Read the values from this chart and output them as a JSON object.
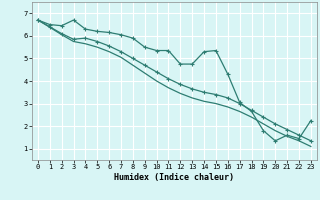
{
  "xlabel": "Humidex (Indice chaleur)",
  "bg_color": "#d8f5f5",
  "grid_color": "#ffffff",
  "line_color": "#2e7d72",
  "xlim": [
    -0.5,
    23.5
  ],
  "ylim": [
    0.5,
    7.5
  ],
  "xticks": [
    0,
    1,
    2,
    3,
    4,
    5,
    6,
    7,
    8,
    9,
    10,
    11,
    12,
    13,
    14,
    15,
    16,
    17,
    18,
    19,
    20,
    21,
    22,
    23
  ],
  "yticks": [
    1,
    2,
    3,
    4,
    5,
    6,
    7
  ],
  "line1_x": [
    0,
    1,
    2,
    3,
    4,
    5,
    6,
    7,
    8,
    9,
    10,
    11,
    12,
    13,
    14,
    15,
    16,
    17,
    18,
    19,
    20,
    21,
    22,
    23
  ],
  "line1_y": [
    6.7,
    6.5,
    6.45,
    6.7,
    6.3,
    6.2,
    6.15,
    6.05,
    5.9,
    5.5,
    5.35,
    5.35,
    4.75,
    4.75,
    5.3,
    5.35,
    4.3,
    3.05,
    2.65,
    1.8,
    1.35,
    1.6,
    1.45,
    2.25
  ],
  "line2_x": [
    0,
    1,
    2,
    3,
    4,
    5,
    6,
    7,
    8,
    9,
    10,
    11,
    12,
    13,
    14,
    15,
    16,
    17,
    18,
    19,
    20,
    21,
    22,
    23
  ],
  "line2_y": [
    6.7,
    6.4,
    6.1,
    5.85,
    5.9,
    5.75,
    5.55,
    5.3,
    5.0,
    4.7,
    4.4,
    4.1,
    3.85,
    3.65,
    3.5,
    3.4,
    3.25,
    3.0,
    2.7,
    2.4,
    2.1,
    1.85,
    1.6,
    1.35
  ],
  "line3_x": [
    0,
    1,
    2,
    3,
    4,
    5,
    6,
    7,
    8,
    9,
    10,
    11,
    12,
    13,
    14,
    15,
    16,
    17,
    18,
    19,
    20,
    21,
    22,
    23
  ],
  "line3_y": [
    6.7,
    6.38,
    6.05,
    5.75,
    5.65,
    5.5,
    5.3,
    5.05,
    4.7,
    4.35,
    4.0,
    3.7,
    3.45,
    3.25,
    3.1,
    3.0,
    2.85,
    2.65,
    2.4,
    2.1,
    1.8,
    1.55,
    1.35,
    1.1
  ]
}
